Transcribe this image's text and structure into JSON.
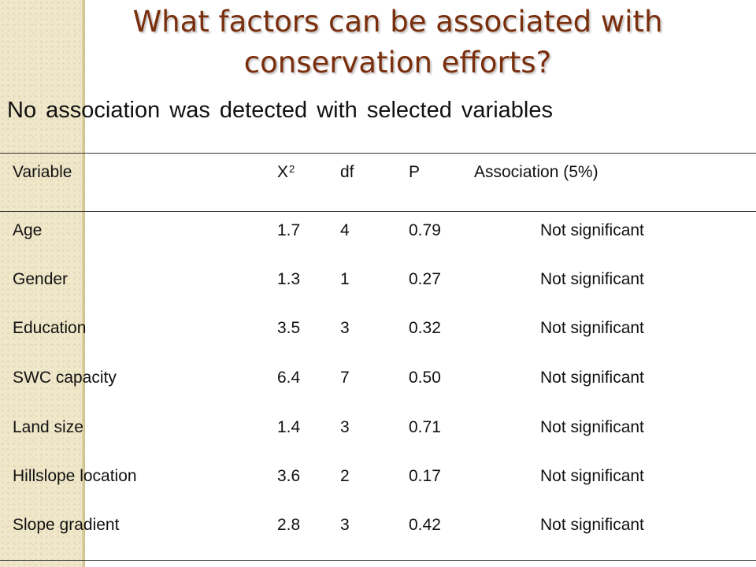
{
  "slide": {
    "title_line1": "What factors can be associated with",
    "title_line2": "conservation efforts?",
    "subtitle": "No association was detected with selected variables"
  },
  "table": {
    "headers": {
      "variable": "Variable",
      "x2_base": "X",
      "x2_sup": "2",
      "df": "df",
      "p": "P",
      "association": "Association (5%)"
    },
    "rows": [
      {
        "variable": "Age",
        "x2": "1.7",
        "df": "4",
        "p": "0.79",
        "association": "Not significant"
      },
      {
        "variable": "Gender",
        "x2": "1.3",
        "df": "1",
        "p": "0.27",
        "association": "Not significant"
      },
      {
        "variable": "Education",
        "x2": "3.5",
        "df": "3",
        "p": "0.32",
        "association": "Not significant"
      },
      {
        "variable": "SWC capacity",
        "x2": "6.4",
        "df": "7",
        "p": "0.50",
        "association": "Not significant"
      },
      {
        "variable": "Land size",
        "x2": "1.4",
        "df": "3",
        "p": "0.71",
        "association": "Not significant"
      },
      {
        "variable": "Hillslope location",
        "x2": "3.6",
        "df": "2",
        "p": "0.17",
        "association": "Not significant"
      },
      {
        "variable": "Slope gradient",
        "x2": "2.8",
        "df": "3",
        "p": "0.42",
        "association": "Not significant"
      }
    ]
  }
}
